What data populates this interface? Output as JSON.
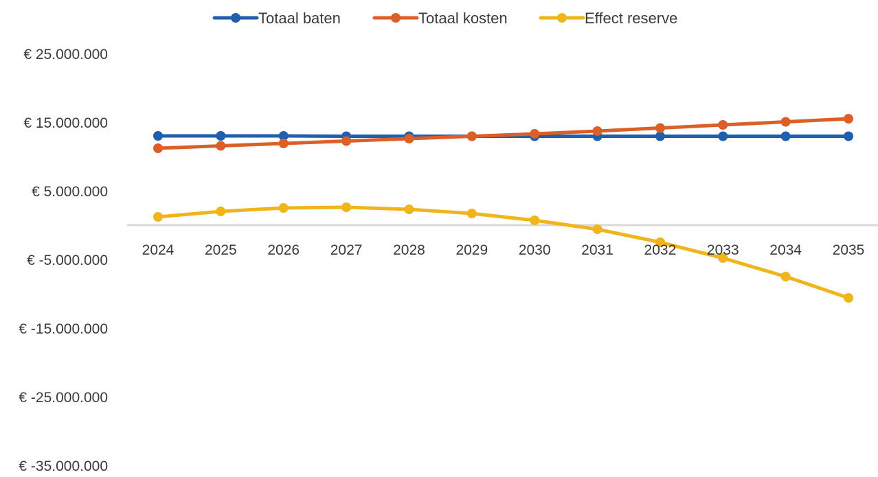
{
  "chart_data": {
    "type": "line",
    "title": "",
    "xlabel": "",
    "ylabel": "",
    "categories": [
      "2024",
      "2025",
      "2026",
      "2027",
      "2028",
      "2029",
      "2030",
      "2031",
      "2032",
      "2033",
      "2034",
      "2035"
    ],
    "y_ticks": [
      25000000,
      15000000,
      5000000,
      -5000000,
      -15000000,
      -25000000,
      -35000000
    ],
    "y_tick_labels": [
      "€ 25.000.000",
      "€ 15.000.000",
      "€ 5.000.000",
      "€ -5.000.000",
      "€ -15.000.000",
      "€ -25.000.000",
      "€ -35.000.000"
    ],
    "ylim": [
      -35000000,
      25000000
    ],
    "grid": false,
    "legend_position": "top",
    "series": [
      {
        "name": "Totaal baten",
        "color": "#1f5fae",
        "values": [
          13000000,
          13000000,
          13000000,
          12950000,
          12950000,
          12950000,
          12950000,
          12950000,
          12950000,
          12950000,
          12950000,
          12950000
        ]
      },
      {
        "name": "Totaal kosten",
        "color": "#dc5f27",
        "values": [
          11200000,
          11550000,
          11900000,
          12250000,
          12600000,
          12950000,
          13300000,
          13700000,
          14150000,
          14600000,
          15050000,
          15500000
        ]
      },
      {
        "name": "Effect reserve",
        "color": "#f0b51a",
        "values": [
          1200000,
          2000000,
          2500000,
          2600000,
          2300000,
          1700000,
          700000,
          -600000,
          -2500000,
          -4800000,
          -7500000,
          -10600000
        ]
      }
    ]
  }
}
